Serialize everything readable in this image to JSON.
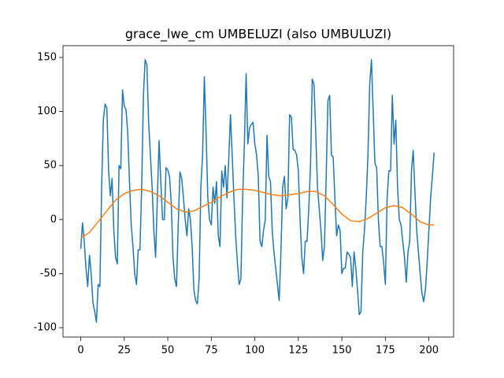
{
  "chart_data": {
    "type": "line",
    "title": "grace_lwe_cm UMBELUZI (also UMBULUZI)",
    "xlim": [
      -10.2,
      214.2
    ],
    "ylim": [
      -108.7,
      160.9
    ],
    "xticks": [
      0,
      25,
      50,
      75,
      100,
      125,
      150,
      175,
      200
    ],
    "yticks": [
      -100,
      -50,
      0,
      50,
      100,
      150
    ],
    "series": [
      {
        "color": "#1f77b4",
        "x": [
          0,
          1,
          2,
          3,
          4,
          5,
          6,
          7,
          8,
          9,
          10,
          11,
          12,
          13,
          14,
          15,
          16,
          17,
          18,
          19,
          20,
          21,
          22,
          23,
          24,
          25,
          26,
          27,
          28,
          29,
          30,
          31,
          32,
          33,
          34,
          35,
          36,
          37,
          38,
          39,
          40,
          41,
          42,
          43,
          44,
          45,
          46,
          47,
          48,
          49,
          50,
          51,
          52,
          53,
          54,
          55,
          56,
          57,
          58,
          59,
          60,
          61,
          62,
          63,
          64,
          65,
          66,
          67,
          68,
          69,
          70,
          71,
          72,
          73,
          74,
          75,
          76,
          77,
          78,
          79,
          80,
          81,
          82,
          83,
          84,
          85,
          86,
          87,
          88,
          89,
          90,
          91,
          92,
          93,
          94,
          95,
          96,
          97,
          98,
          99,
          100,
          101,
          102,
          103,
          104,
          105,
          106,
          107,
          108,
          109,
          110,
          111,
          112,
          113,
          114,
          115,
          116,
          117,
          118,
          119,
          120,
          121,
          122,
          123,
          124,
          125,
          126,
          127,
          128,
          129,
          130,
          131,
          132,
          133,
          134,
          135,
          136,
          137,
          138,
          139,
          140,
          141,
          142,
          143,
          144,
          145,
          146,
          147,
          148,
          149,
          150,
          151,
          152,
          153,
          154,
          155,
          156,
          157,
          158,
          159,
          160,
          161,
          162,
          163,
          164,
          165,
          166,
          167,
          168,
          169,
          170,
          171,
          172,
          173,
          174,
          175,
          176,
          177,
          178,
          179,
          180,
          181,
          182,
          183,
          184,
          185,
          186,
          187,
          188,
          189,
          190,
          191,
          192,
          193,
          194,
          195,
          196,
          197,
          198,
          199,
          200,
          201,
          202,
          203
        ],
        "values": [
          -27,
          -3,
          -20,
          -45,
          -62,
          -33,
          -50,
          -77,
          -85,
          -95,
          -60,
          -62,
          30,
          93,
          107,
          103,
          45,
          22,
          38,
          -10,
          -35,
          -41,
          50,
          47,
          120,
          105,
          102,
          80,
          35,
          -5,
          -25,
          -50,
          -60,
          -28,
          -28,
          30,
          115,
          148,
          143,
          90,
          60,
          30,
          -10,
          -35,
          20,
          73,
          35,
          0,
          0,
          48,
          46,
          40,
          15,
          -35,
          -55,
          -62,
          -5,
          44,
          38,
          20,
          0,
          -15,
          10,
          0,
          -25,
          -65,
          -75,
          -78,
          -55,
          30,
          60,
          132,
          80,
          20,
          0,
          -5,
          30,
          15,
          35,
          -15,
          -25,
          45,
          30,
          50,
          20,
          55,
          97,
          60,
          20,
          -15,
          -40,
          -60,
          -55,
          20,
          70,
          135,
          70,
          85,
          88,
          90,
          70,
          60,
          40,
          -20,
          -25,
          -10,
          0,
          78,
          40,
          35,
          -10,
          -30,
          -45,
          -60,
          -75,
          -30,
          30,
          40,
          10,
          20,
          97,
          95,
          65,
          64,
          60,
          45,
          0,
          -35,
          -50,
          -20,
          -20,
          10,
          50,
          130,
          125,
          80,
          30,
          10,
          -10,
          -38,
          -25,
          40,
          110,
          115,
          60,
          58,
          20,
          -15,
          -5,
          -10,
          -50,
          -45,
          -45,
          -30,
          -32,
          -35,
          -62,
          -30,
          -45,
          -65,
          -88,
          -85,
          -30,
          -10,
          20,
          60,
          125,
          148,
          100,
          52,
          48,
          0,
          -25,
          -25,
          -40,
          -60,
          20,
          45,
          45,
          115,
          70,
          92,
          30,
          0,
          -5,
          -20,
          -35,
          -58,
          -30,
          -20,
          45,
          64,
          25,
          -10,
          -30,
          -50,
          -68,
          -76,
          -65,
          -40,
          -10,
          20,
          40,
          62
        ]
      },
      {
        "color": "#ff7f0e",
        "x": [
          0,
          5,
          10,
          15,
          20,
          25,
          30,
          35,
          40,
          45,
          50,
          55,
          60,
          65,
          70,
          75,
          80,
          85,
          90,
          95,
          100,
          105,
          110,
          115,
          120,
          125,
          130,
          135,
          140,
          145,
          150,
          155,
          160,
          165,
          170,
          175,
          180,
          185,
          190,
          195,
          200,
          203
        ],
        "values": [
          -17,
          -12,
          -2,
          8,
          18,
          24,
          27,
          28,
          26,
          22,
          16,
          10,
          7,
          8,
          12,
          16,
          21,
          25,
          28,
          28,
          27,
          25,
          23,
          22,
          23,
          24,
          26,
          26,
          22,
          14,
          5,
          -1,
          -2,
          1,
          6,
          11,
          13,
          11,
          5,
          -2,
          -5,
          -5
        ]
      }
    ]
  }
}
